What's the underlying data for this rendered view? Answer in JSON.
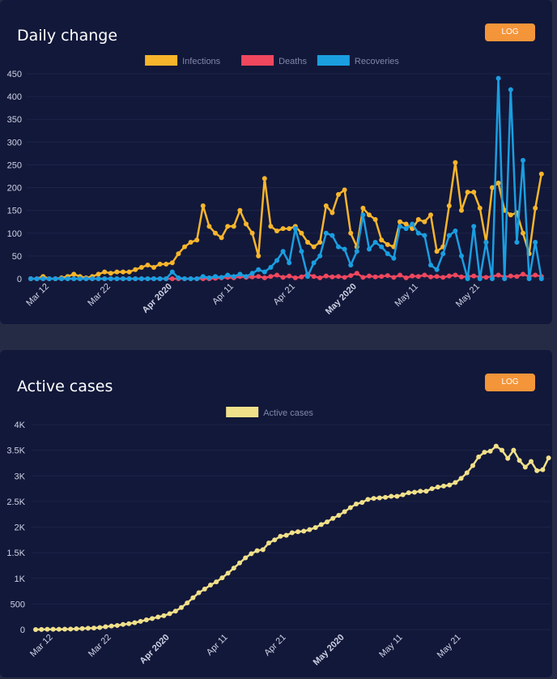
{
  "colors": {
    "infections": "#f7b52c",
    "deaths": "#f0475e",
    "recoveries": "#1a9ee0",
    "active": "#f1e08a",
    "log_button": "#f4953a",
    "card_bg": "#12183a"
  },
  "chart_data": [
    {
      "type": "line",
      "title": "Daily change",
      "button_label": "LOG",
      "x_tick_labels": [
        "Mar 12",
        "Mar 22",
        "Apr 2020",
        "Apr 11",
        "Apr 21",
        "May 2020",
        "May 11",
        "May 21"
      ],
      "x_tick_days": [
        3,
        13,
        23,
        33,
        43,
        53,
        63,
        73
      ],
      "x_tick_bold": [
        false,
        false,
        true,
        false,
        false,
        true,
        false,
        false
      ],
      "x_first_day": "2020-03-09",
      "y_ticks": [
        "0",
        "50",
        "100",
        "150",
        "200",
        "250",
        "300",
        "350",
        "400",
        "450"
      ],
      "ylim": [
        0,
        450
      ],
      "legend_position": "top",
      "series": [
        {
          "name": "Infections",
          "color": "#f7b52c",
          "values": [
            0,
            0,
            5,
            0,
            0,
            2,
            5,
            10,
            5,
            2,
            5,
            10,
            15,
            12,
            15,
            15,
            15,
            20,
            25,
            30,
            25,
            32,
            32,
            35,
            55,
            70,
            80,
            85,
            160,
            115,
            100,
            90,
            115,
            115,
            150,
            120,
            100,
            50,
            220,
            115,
            105,
            110,
            110,
            115,
            100,
            80,
            70,
            80,
            160,
            145,
            185,
            195,
            100,
            70,
            155,
            140,
            130,
            85,
            75,
            70,
            125,
            120,
            110,
            130,
            125,
            140,
            60,
            70,
            160,
            255,
            150,
            190,
            190,
            155,
            80,
            200,
            210,
            150,
            140,
            145,
            100,
            55,
            155,
            230
          ],
          "show_points": true
        },
        {
          "name": "Deaths",
          "color": "#f0475e",
          "values": [
            0,
            0,
            0,
            0,
            0,
            0,
            0,
            0,
            0,
            0,
            0,
            0,
            0,
            0,
            0,
            0,
            0,
            0,
            0,
            0,
            0,
            0,
            0,
            0,
            0,
            0,
            0,
            0,
            0,
            0,
            1,
            2,
            3,
            2,
            5,
            3,
            4,
            5,
            2,
            5,
            8,
            3,
            6,
            2,
            4,
            10,
            5,
            2,
            6,
            4,
            5,
            3,
            7,
            12,
            3,
            6,
            4,
            5,
            7,
            3,
            8,
            2,
            6,
            5,
            8,
            4,
            5,
            3,
            6,
            8,
            4,
            5,
            6,
            4,
            3,
            5,
            8,
            4,
            6,
            5,
            10,
            5,
            8,
            5
          ],
          "show_points": true
        },
        {
          "name": "Recoveries",
          "color": "#1a9ee0",
          "values": [
            0,
            0,
            0,
            0,
            0,
            0,
            0,
            0,
            0,
            0,
            0,
            0,
            0,
            0,
            0,
            0,
            0,
            0,
            0,
            0,
            0,
            0,
            0,
            15,
            2,
            0,
            0,
            0,
            5,
            2,
            5,
            3,
            8,
            5,
            10,
            5,
            12,
            20,
            15,
            25,
            40,
            60,
            35,
            110,
            60,
            5,
            35,
            50,
            100,
            95,
            70,
            65,
            30,
            60,
            140,
            65,
            80,
            70,
            55,
            45,
            115,
            110,
            120,
            100,
            95,
            30,
            20,
            55,
            95,
            105,
            50,
            0,
            115,
            0,
            80,
            0,
            440,
            0,
            415,
            80,
            260,
            0,
            80,
            0
          ],
          "show_points": true
        }
      ]
    },
    {
      "type": "line",
      "title": "Active cases",
      "button_label": "LOG",
      "x_tick_labels": [
        "Mar 12",
        "Mar 22",
        "Apr 2020",
        "Apr 11",
        "Apr 21",
        "May 2020",
        "May 11",
        "May 21"
      ],
      "x_tick_days": [
        3,
        13,
        23,
        33,
        43,
        53,
        63,
        73
      ],
      "x_tick_bold": [
        false,
        false,
        true,
        false,
        false,
        true,
        false,
        false
      ],
      "x_first_day": "2020-03-09",
      "y_ticks": [
        "0",
        "500",
        "1K",
        "1.5K",
        "2K",
        "2.5K",
        "3K",
        "3.5K",
        "4K"
      ],
      "ylim": [
        0,
        4000
      ],
      "legend_position": "top",
      "series": [
        {
          "name": "Active cases",
          "color": "#f1e08a",
          "values": [
            0,
            2,
            5,
            5,
            5,
            8,
            10,
            15,
            20,
            25,
            30,
            40,
            55,
            70,
            80,
            100,
            115,
            135,
            160,
            190,
            215,
            245,
            270,
            310,
            360,
            430,
            520,
            620,
            720,
            790,
            870,
            930,
            1010,
            1100,
            1200,
            1300,
            1400,
            1480,
            1540,
            1560,
            1690,
            1750,
            1820,
            1840,
            1890,
            1910,
            1920,
            1950,
            1990,
            2050,
            2100,
            2170,
            2230,
            2300,
            2380,
            2450,
            2480,
            2540,
            2560,
            2570,
            2580,
            2600,
            2600,
            2630,
            2670,
            2680,
            2700,
            2700,
            2750,
            2780,
            2800,
            2820,
            2870,
            2950,
            3060,
            3200,
            3370,
            3460,
            3480,
            3580,
            3500,
            3340,
            3500,
            3300,
            3170,
            3280,
            3100,
            3120,
            3350
          ]
        }
      ]
    }
  ]
}
